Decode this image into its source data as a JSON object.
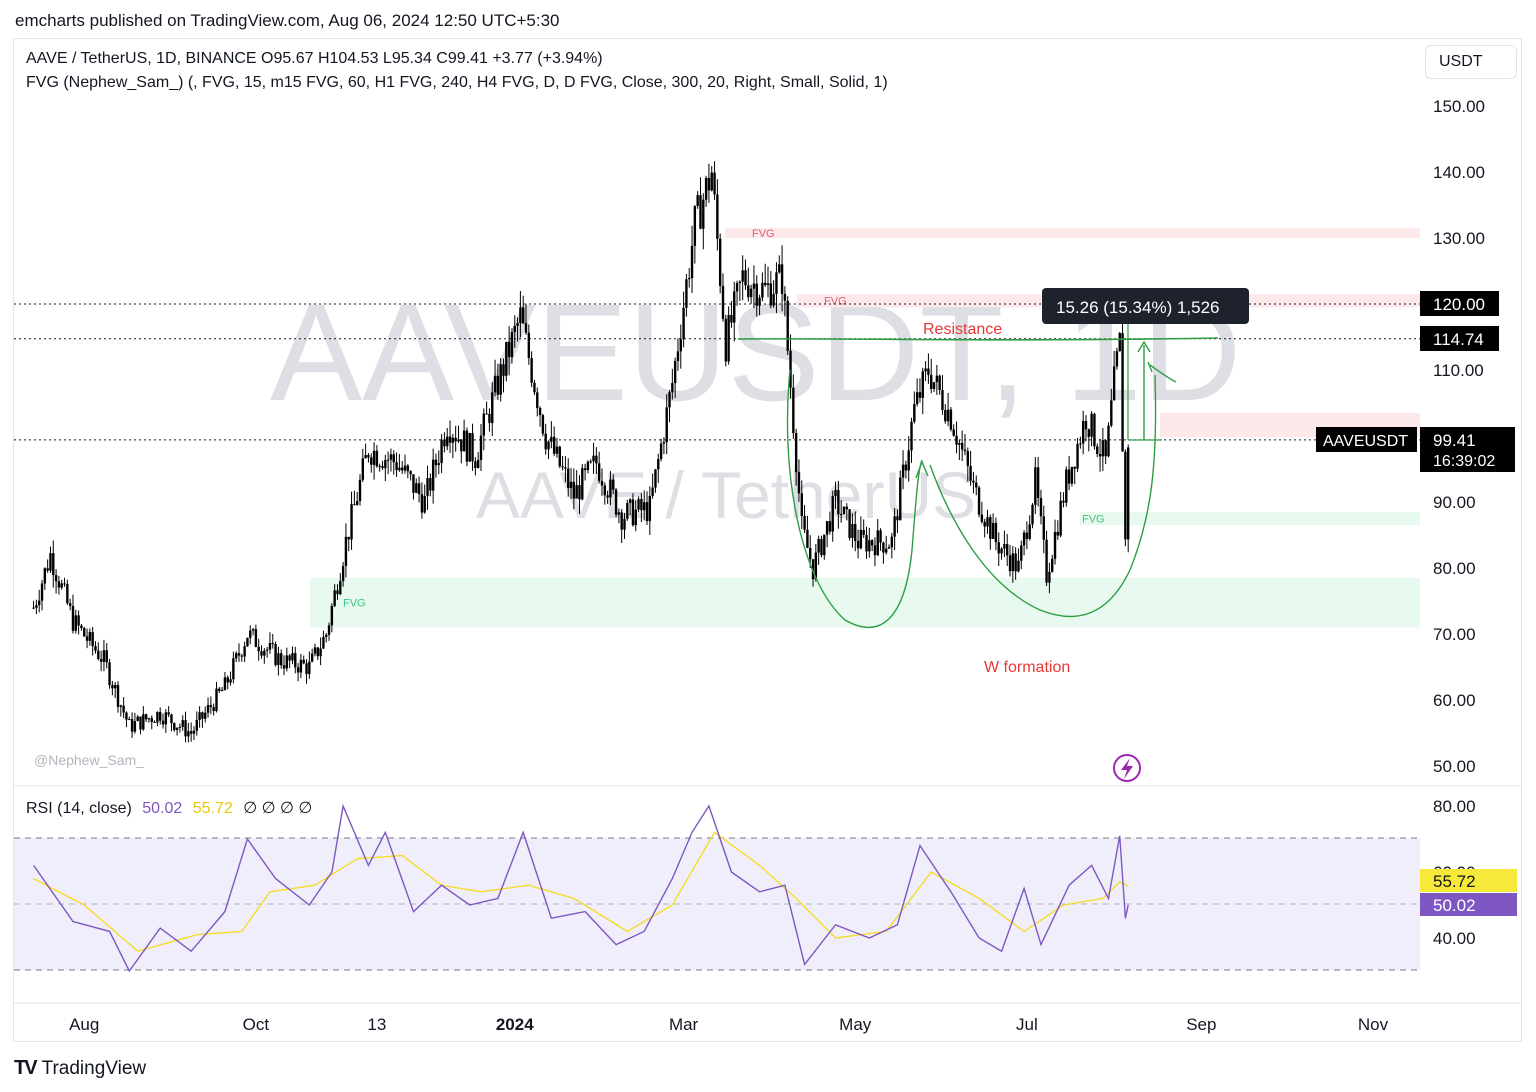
{
  "header": {
    "published_by": "emcharts published on TradingView.com, Aug 06, 2024 12:50 UTC+5:30"
  },
  "symbol_legend": {
    "line1": "AAVE / TetherUS, 1D, BINANCE  O95.67  H104.53  L95.34  C99.41  +3.77 (+3.94%)",
    "line2": "FVG (Nephew_Sam_) (, FVG, 15, m15 FVG, 60, H1 FVG, 240, H4 FVG, D, D FVG, Close, 300, 20, Right, Small, Solid, 1)"
  },
  "currency_button": "USDT",
  "watermark": {
    "main": "AAVEUSDT, 1D",
    "sub": "AAVE / TetherUS",
    "author": "@Nephew_Sam_"
  },
  "annotations": {
    "resistance": "Resistance",
    "w_formation": "W formation",
    "measure_label": "15.26 (15.34%) 1,526",
    "fvg_label": "FVG"
  },
  "price_tags": {
    "level_120": "120.00",
    "level_114": "114.74",
    "symbol_name": "AAVEUSDT",
    "last_price": "99.41",
    "countdown": "16:39:02"
  },
  "rsi_legend": {
    "label": "RSI (14, close)",
    "rsi_value": "50.02",
    "ma_value": "55.72",
    "na_markers": "∅  ∅  ∅  ∅"
  },
  "rsi_tags": {
    "ma": "55.72",
    "rsi": "50.02"
  },
  "footer": {
    "brand": "TradingView"
  },
  "colors": {
    "bullish": "#26a69a",
    "candle": "#000000",
    "fvg_bear": "#fde9ea",
    "fvg_bull": "#e8f9ef",
    "resistance_line": "#2e9e44",
    "annotation_red": "#e53935",
    "rsi_line": "#7e57c2",
    "rsi_ma": "#f5dc2c",
    "rsi_band": "#f1eefb"
  },
  "chart_data": {
    "type": "candlestick",
    "symbol": "AAVE / TetherUS",
    "timeframe": "1D",
    "exchange": "BINANCE",
    "last_bar": {
      "open": 95.67,
      "high": 104.53,
      "low": 95.34,
      "close": 99.41,
      "change": 3.77,
      "change_pct": 3.94
    },
    "price_axis": {
      "ticks": [
        150,
        140,
        130,
        120,
        110,
        100,
        90,
        80,
        70,
        60,
        50
      ],
      "range": [
        48,
        156
      ],
      "labels_shown": [
        "150.00",
        "140.00",
        "130.00",
        "120.00",
        "110.00",
        "90.00",
        "80.00",
        "70.00",
        "60.00",
        "50.00"
      ]
    },
    "time_axis": {
      "labels": [
        "Aug",
        "Oct",
        "13",
        "2024",
        "Mar",
        "May",
        "Jul",
        "Sep",
        "Nov"
      ]
    },
    "close_series": [
      {
        "date": "2023-07-14",
        "close": 74
      },
      {
        "date": "2023-07-20",
        "close": 82
      },
      {
        "date": "2023-07-28",
        "close": 72
      },
      {
        "date": "2023-08-08",
        "close": 66
      },
      {
        "date": "2023-08-17",
        "close": 56
      },
      {
        "date": "2023-08-28",
        "close": 58
      },
      {
        "date": "2023-09-08",
        "close": 55
      },
      {
        "date": "2023-09-20",
        "close": 62
      },
      {
        "date": "2023-09-28",
        "close": 70
      },
      {
        "date": "2023-10-10",
        "close": 66
      },
      {
        "date": "2023-10-20",
        "close": 65
      },
      {
        "date": "2023-10-26",
        "close": 70
      },
      {
        "date": "2023-11-02",
        "close": 84
      },
      {
        "date": "2023-11-10",
        "close": 98
      },
      {
        "date": "2023-11-20",
        "close": 96
      },
      {
        "date": "2023-11-30",
        "close": 90
      },
      {
        "date": "2023-12-08",
        "close": 102
      },
      {
        "date": "2023-12-18",
        "close": 97
      },
      {
        "date": "2023-12-26",
        "close": 108
      },
      {
        "date": "2024-01-03",
        "close": 118
      },
      {
        "date": "2024-01-12",
        "close": 100
      },
      {
        "date": "2024-01-22",
        "close": 91
      },
      {
        "date": "2024-01-30",
        "close": 96
      },
      {
        "date": "2024-02-08",
        "close": 88
      },
      {
        "date": "2024-02-18",
        "close": 89
      },
      {
        "date": "2024-02-26",
        "close": 108
      },
      {
        "date": "2024-03-05",
        "close": 132
      },
      {
        "date": "2024-03-11",
        "close": 140
      },
      {
        "date": "2024-03-16",
        "close": 114
      },
      {
        "date": "2024-03-22",
        "close": 124
      },
      {
        "date": "2024-03-30",
        "close": 122
      },
      {
        "date": "2024-04-05",
        "close": 124
      },
      {
        "date": "2024-04-12",
        "close": 86
      },
      {
        "date": "2024-04-16",
        "close": 80
      },
      {
        "date": "2024-04-24",
        "close": 90
      },
      {
        "date": "2024-05-02",
        "close": 84
      },
      {
        "date": "2024-05-14",
        "close": 84
      },
      {
        "date": "2024-05-22",
        "close": 104
      },
      {
        "date": "2024-05-27",
        "close": 110
      },
      {
        "date": "2024-06-04",
        "close": 103
      },
      {
        "date": "2024-06-12",
        "close": 92
      },
      {
        "date": "2024-06-20",
        "close": 84
      },
      {
        "date": "2024-06-28",
        "close": 80
      },
      {
        "date": "2024-07-04",
        "close": 93
      },
      {
        "date": "2024-07-08",
        "close": 79
      },
      {
        "date": "2024-07-15",
        "close": 93
      },
      {
        "date": "2024-07-22",
        "close": 103
      },
      {
        "date": "2024-07-29",
        "close": 96
      },
      {
        "date": "2024-08-01",
        "close": 108
      },
      {
        "date": "2024-08-03",
        "close": 114
      },
      {
        "date": "2024-08-05",
        "close": 84
      },
      {
        "date": "2024-08-06",
        "close": 99.41
      }
    ],
    "zones": [
      {
        "kind": "FVG",
        "direction": "bearish",
        "top": 131.5,
        "bottom": 130
      },
      {
        "kind": "FVG",
        "direction": "bearish",
        "top": 121.5,
        "bottom": 119.5
      },
      {
        "kind": "FVG",
        "direction": "bearish",
        "top": 103.5,
        "bottom": 99.8
      },
      {
        "kind": "FVG",
        "direction": "bullish",
        "top": 88.5,
        "bottom": 86.5
      },
      {
        "kind": "FVG",
        "direction": "bullish",
        "top": 78.5,
        "bottom": 71
      }
    ],
    "horizontal_levels": [
      120.0,
      114.74,
      99.41
    ],
    "resistance_level": 114.74,
    "measure": {
      "change": 15.26,
      "change_pct": 15.34,
      "ticks": 1526
    },
    "rsi": {
      "length": 14,
      "source": "close",
      "value": 50.02,
      "ma_value": 55.72,
      "axis_ticks": [
        80,
        60,
        40
      ],
      "bands": [
        70,
        50,
        30
      ],
      "series": [
        {
          "date": "2023-07-14",
          "rsi": 62
        },
        {
          "date": "2023-07-28",
          "rsi": 45
        },
        {
          "date": "2023-08-10",
          "rsi": 42
        },
        {
          "date": "2023-08-17",
          "rsi": 30
        },
        {
          "date": "2023-08-28",
          "rsi": 43
        },
        {
          "date": "2023-09-08",
          "rsi": 36
        },
        {
          "date": "2023-09-20",
          "rsi": 48
        },
        {
          "date": "2023-09-28",
          "rsi": 70
        },
        {
          "date": "2023-10-08",
          "rsi": 58
        },
        {
          "date": "2023-10-20",
          "rsi": 50
        },
        {
          "date": "2023-10-28",
          "rsi": 60
        },
        {
          "date": "2023-11-01",
          "rsi": 80
        },
        {
          "date": "2023-11-10",
          "rsi": 62
        },
        {
          "date": "2023-11-16",
          "rsi": 72
        },
        {
          "date": "2023-11-26",
          "rsi": 48
        },
        {
          "date": "2023-12-06",
          "rsi": 56
        },
        {
          "date": "2023-12-16",
          "rsi": 50
        },
        {
          "date": "2023-12-26",
          "rsi": 52
        },
        {
          "date": "2024-01-04",
          "rsi": 72
        },
        {
          "date": "2024-01-14",
          "rsi": 46
        },
        {
          "date": "2024-01-26",
          "rsi": 48
        },
        {
          "date": "2024-02-06",
          "rsi": 38
        },
        {
          "date": "2024-02-16",
          "rsi": 42
        },
        {
          "date": "2024-02-26",
          "rsi": 58
        },
        {
          "date": "2024-03-04",
          "rsi": 72
        },
        {
          "date": "2024-03-10",
          "rsi": 80
        },
        {
          "date": "2024-03-18",
          "rsi": 60
        },
        {
          "date": "2024-03-28",
          "rsi": 54
        },
        {
          "date": "2024-04-06",
          "rsi": 56
        },
        {
          "date": "2024-04-13",
          "rsi": 32
        },
        {
          "date": "2024-04-24",
          "rsi": 44
        },
        {
          "date": "2024-05-06",
          "rsi": 40
        },
        {
          "date": "2024-05-16",
          "rsi": 44
        },
        {
          "date": "2024-05-24",
          "rsi": 68
        },
        {
          "date": "2024-06-04",
          "rsi": 54
        },
        {
          "date": "2024-06-14",
          "rsi": 40
        },
        {
          "date": "2024-06-22",
          "rsi": 36
        },
        {
          "date": "2024-06-30",
          "rsi": 55
        },
        {
          "date": "2024-07-06",
          "rsi": 38
        },
        {
          "date": "2024-07-16",
          "rsi": 56
        },
        {
          "date": "2024-07-24",
          "rsi": 62
        },
        {
          "date": "2024-07-30",
          "rsi": 52
        },
        {
          "date": "2024-08-03",
          "rsi": 71
        },
        {
          "date": "2024-08-05",
          "rsi": 46
        },
        {
          "date": "2024-08-06",
          "rsi": 50.02
        }
      ],
      "ma_series": [
        {
          "date": "2023-07-14",
          "ma": 58
        },
        {
          "date": "2023-08-01",
          "ma": 50
        },
        {
          "date": "2023-08-20",
          "ma": 36
        },
        {
          "date": "2023-09-10",
          "ma": 41
        },
        {
          "date": "2023-09-26",
          "ma": 42
        },
        {
          "date": "2023-10-06",
          "ma": 54
        },
        {
          "date": "2023-10-22",
          "ma": 56
        },
        {
          "date": "2023-11-06",
          "ma": 64
        },
        {
          "date": "2023-11-22",
          "ma": 65
        },
        {
          "date": "2023-12-06",
          "ma": 56
        },
        {
          "date": "2023-12-20",
          "ma": 54
        },
        {
          "date": "2024-01-06",
          "ma": 56
        },
        {
          "date": "2024-01-22",
          "ma": 52
        },
        {
          "date": "2024-02-10",
          "ma": 42
        },
        {
          "date": "2024-02-26",
          "ma": 50
        },
        {
          "date": "2024-03-12",
          "ma": 72
        },
        {
          "date": "2024-03-28",
          "ma": 62
        },
        {
          "date": "2024-04-10",
          "ma": 52
        },
        {
          "date": "2024-04-24",
          "ma": 40
        },
        {
          "date": "2024-05-12",
          "ma": 42
        },
        {
          "date": "2024-05-28",
          "ma": 60
        },
        {
          "date": "2024-06-14",
          "ma": 52
        },
        {
          "date": "2024-06-30",
          "ma": 42
        },
        {
          "date": "2024-07-14",
          "ma": 50
        },
        {
          "date": "2024-07-28",
          "ma": 52
        },
        {
          "date": "2024-08-03",
          "ma": 57
        },
        {
          "date": "2024-08-06",
          "ma": 55.72
        }
      ]
    }
  }
}
